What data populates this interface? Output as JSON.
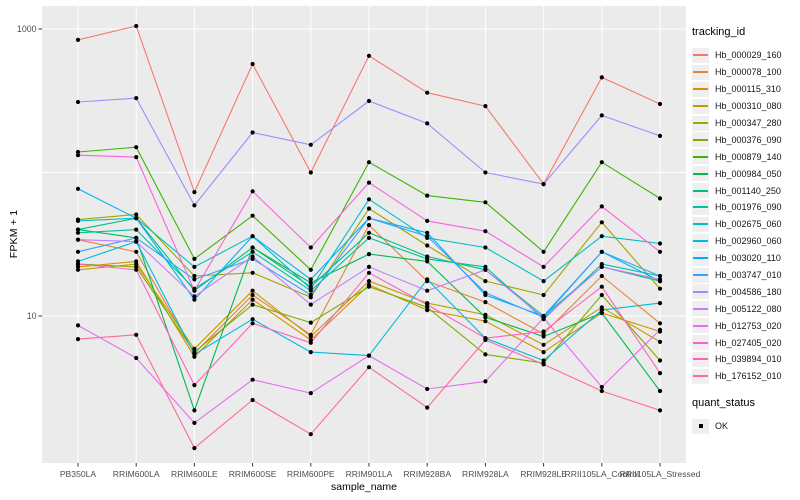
{
  "chart_data": {
    "type": "line",
    "title": "",
    "xlabel": "sample_name",
    "ylabel": "FPKM + 1",
    "y_scale": "log10",
    "y_tick_labels": [
      "1000",
      "10"
    ],
    "y_tick_values": [
      1000,
      10
    ],
    "y_gridline_values": [
      1000,
      100,
      10
    ],
    "ylim": [
      1,
      1450
    ],
    "grid": true,
    "panel_bg": "#ebebeb",
    "gridline_color": "#ffffff",
    "tick_color": "#333333",
    "tick_label_color": "#4d4d4d",
    "point_color": "#000000",
    "categories": [
      "PB350LA",
      "RRIM600LA",
      "RRIM600LE",
      "RRIM600SE",
      "RRIM600PE",
      "RRIM901LA",
      "RRIM928BA",
      "RRIM928LA",
      "RRIM928LE",
      "RRII105LA_Control",
      "RRII105LA_Stressed"
    ],
    "legend": {
      "title": "tracking_id",
      "position": "right"
    },
    "quant_legend": {
      "title": "quant_status",
      "items": [
        {
          "label": "OK",
          "symbol": "black-square-point"
        }
      ]
    },
    "series": [
      {
        "name": "Hb_000029_160",
        "color": "#F8766D",
        "values": [
          840,
          1050,
          73,
          570,
          100,
          650,
          360,
          290,
          83,
          460,
          300
        ]
      },
      {
        "name": "Hb_000078_100",
        "color": "#EA8331",
        "values": [
          34,
          28,
          5.5,
          14,
          7.4,
          43,
          17.5,
          12.5,
          7.5,
          19,
          8.9
        ]
      },
      {
        "name": "Hb_000115_310",
        "color": "#D89000",
        "values": [
          22,
          24,
          5.2,
          13,
          6.8,
          16.5,
          11,
          9.2,
          5.6,
          10.5,
          7.8
        ]
      },
      {
        "name": "Hb_000310_080",
        "color": "#C09B00",
        "values": [
          21,
          23,
          5.9,
          15,
          7.2,
          17.5,
          12.3,
          10.2,
          6.3,
          11.5,
          6.6
        ]
      },
      {
        "name": "Hb_000347_280",
        "color": "#A3A500",
        "values": [
          47,
          51,
          19,
          20,
          13.5,
          56,
          31,
          17.5,
          14,
          45,
          15.5
        ]
      },
      {
        "name": "Hb_000376_090",
        "color": "#7CAE00",
        "values": [
          23,
          22,
          5.6,
          12,
          9,
          16,
          11.5,
          5.4,
          4.7,
          14,
          4.9
        ]
      },
      {
        "name": "Hb_000879_140",
        "color": "#39B600",
        "values": [
          139,
          150,
          25,
          50,
          21,
          118,
          69,
          62,
          28,
          118,
          66
        ]
      },
      {
        "name": "Hb_000984_050",
        "color": "#00BB4E",
        "values": [
          40,
          35,
          2.2,
          30,
          17,
          27,
          24,
          9.8,
          7.2,
          10.5,
          3.0
        ]
      },
      {
        "name": "Hb_001140_250",
        "color": "#00BF7D",
        "values": [
          40,
          48,
          15,
          30,
          16,
          38,
          26,
          21,
          10,
          22,
          17.5
        ]
      },
      {
        "name": "Hb_001976_090",
        "color": "#00C1A3",
        "values": [
          38,
          40,
          15.5,
          28,
          15,
          35,
          25,
          22,
          9.5,
          23,
          19
        ]
      },
      {
        "name": "Hb_002675_060",
        "color": "#00BFC4",
        "values": [
          46,
          48,
          22,
          36,
          15.5,
          65,
          35,
          30,
          17.5,
          36,
          32
        ]
      },
      {
        "name": "Hb_002960_060",
        "color": "#00BAE0",
        "values": [
          24,
          33,
          5.4,
          9.5,
          5.6,
          5.3,
          18,
          7.0,
          4.9,
          11,
          12.3
        ]
      },
      {
        "name": "Hb_003020_110",
        "color": "#00B0F6",
        "values": [
          77,
          48,
          13,
          36,
          18,
          48,
          38,
          14,
          10,
          28,
          17.5
        ]
      },
      {
        "name": "Hb_003747_010",
        "color": "#35A2FF",
        "values": [
          28,
          35,
          18,
          25,
          14,
          48,
          36,
          14.5,
          9.8,
          28,
          19
        ]
      },
      {
        "name": "Hb_004586_180",
        "color": "#9590FF",
        "values": [
          310,
          330,
          59,
          190,
          156,
          315,
          220,
          100,
          83,
          250,
          180
        ]
      },
      {
        "name": "Hb_005122_080",
        "color": "#C77CFF",
        "values": [
          34,
          33,
          13.7,
          26,
          12,
          22,
          15,
          21,
          9.7,
          22,
          18
        ]
      },
      {
        "name": "Hb_012753_020",
        "color": "#E76BF3",
        "values": [
          8.6,
          5.1,
          1.8,
          3.6,
          2.9,
          5.3,
          3.1,
          3.5,
          9.7,
          3.2,
          8.0
        ]
      },
      {
        "name": "Hb_027405_020",
        "color": "#FA62DB",
        "values": [
          132,
          128,
          15,
          74,
          30,
          85,
          46,
          39,
          22,
          58,
          28
        ]
      },
      {
        "name": "Hb_039894_010",
        "color": "#FF62BC",
        "values": [
          23,
          21,
          3.3,
          8.9,
          6.5,
          20,
          12,
          7.0,
          7.8,
          16,
          4.0
        ]
      },
      {
        "name": "Hb_176152_010",
        "color": "#FF6A98",
        "values": [
          6.9,
          7.4,
          1.2,
          2.6,
          1.5,
          4.4,
          2.3,
          6.8,
          4.6,
          3.0,
          2.2
        ]
      }
    ]
  }
}
